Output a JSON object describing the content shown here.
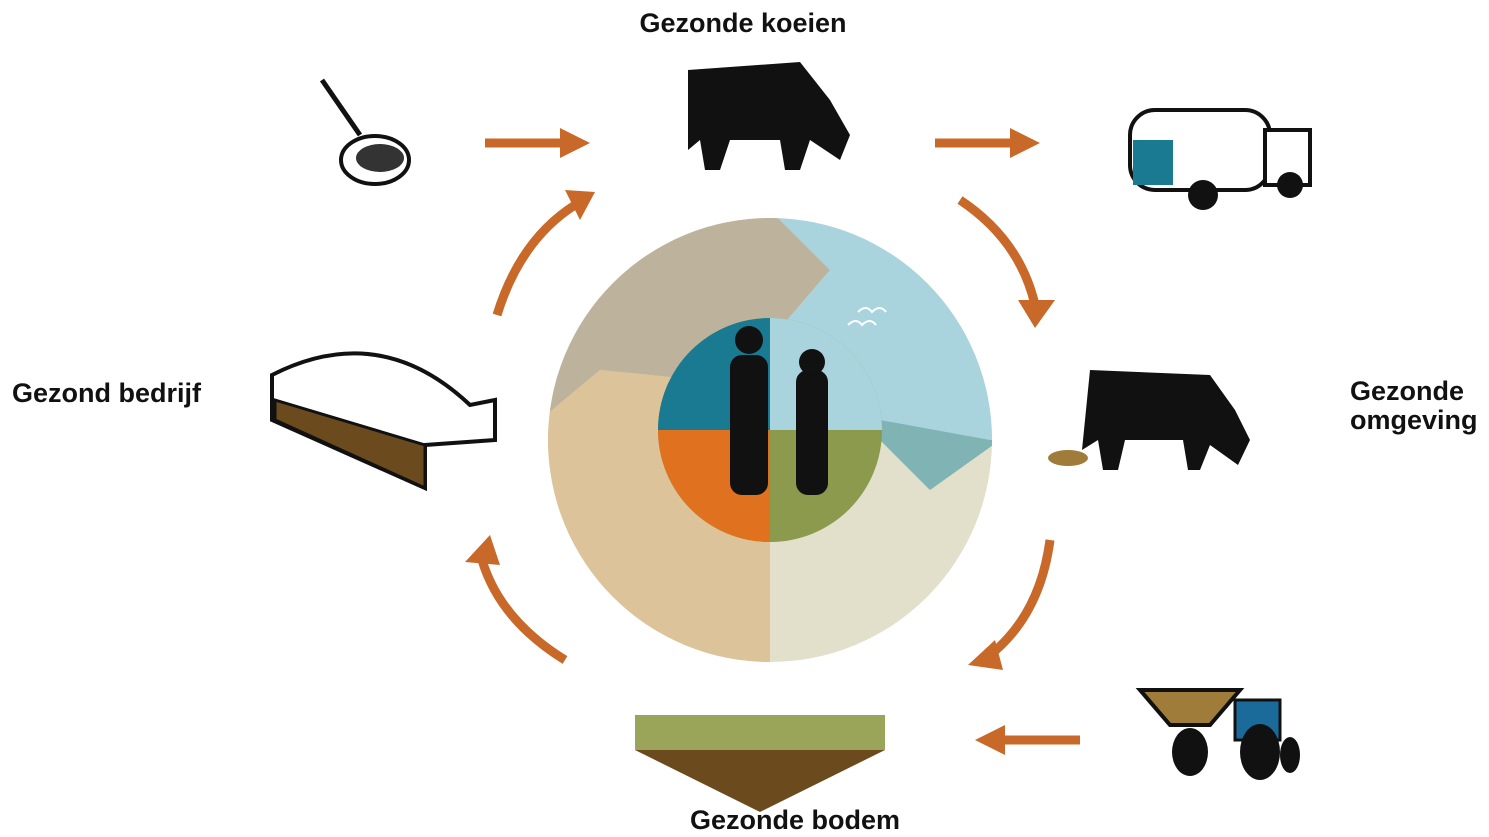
{
  "nodes": [
    {
      "lines": [
        "Gezonde koeien"
      ]
    },
    {
      "lines": [
        "Gezond bedrijf"
      ]
    },
    {
      "lines": [
        "Gezonde",
        "omgeving"
      ]
    },
    {
      "lines": [
        "Gezonde bodem"
      ]
    }
  ]
}
